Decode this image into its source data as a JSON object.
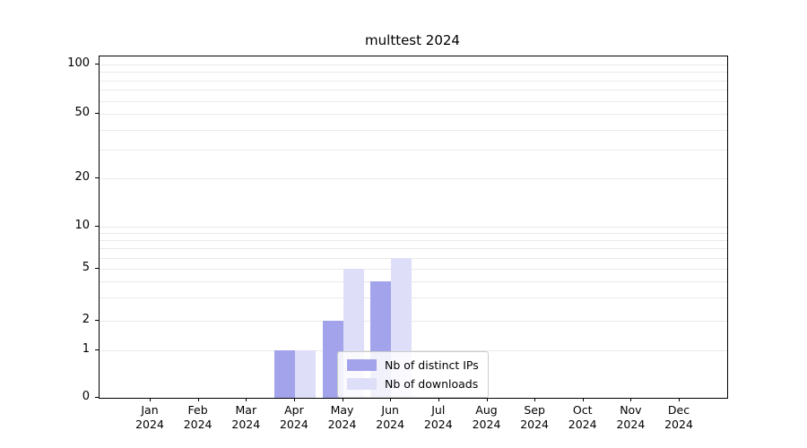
{
  "title": "multtest 2024",
  "chart_data": {
    "type": "bar",
    "title": "multtest 2024",
    "categories": [
      "Jan",
      "Feb",
      "Mar",
      "Apr",
      "May",
      "Jun",
      "Jul",
      "Aug",
      "Sep",
      "Oct",
      "Nov",
      "Dec"
    ],
    "year": "2024",
    "series": [
      {
        "name": "Nb of distinct IPs",
        "color": "#a3a3ec",
        "values": [
          0,
          0,
          0,
          1,
          2,
          4,
          0,
          0,
          0,
          0,
          0,
          0
        ]
      },
      {
        "name": "Nb of downloads",
        "color": "#dedef8",
        "values": [
          0,
          0,
          0,
          1,
          5,
          6,
          0,
          0,
          0,
          0,
          0,
          0
        ]
      }
    ],
    "yscale": "log-like",
    "yticks": [
      0,
      1,
      2,
      5,
      10,
      20,
      50,
      100
    ],
    "minor_gridlines": [
      1,
      2,
      3,
      4,
      5,
      6,
      7,
      8,
      9,
      10,
      20,
      30,
      40,
      50,
      60,
      70,
      80,
      90,
      100
    ],
    "ylim": [
      0,
      110
    ],
    "grid": true,
    "legend_position": "lower center"
  }
}
